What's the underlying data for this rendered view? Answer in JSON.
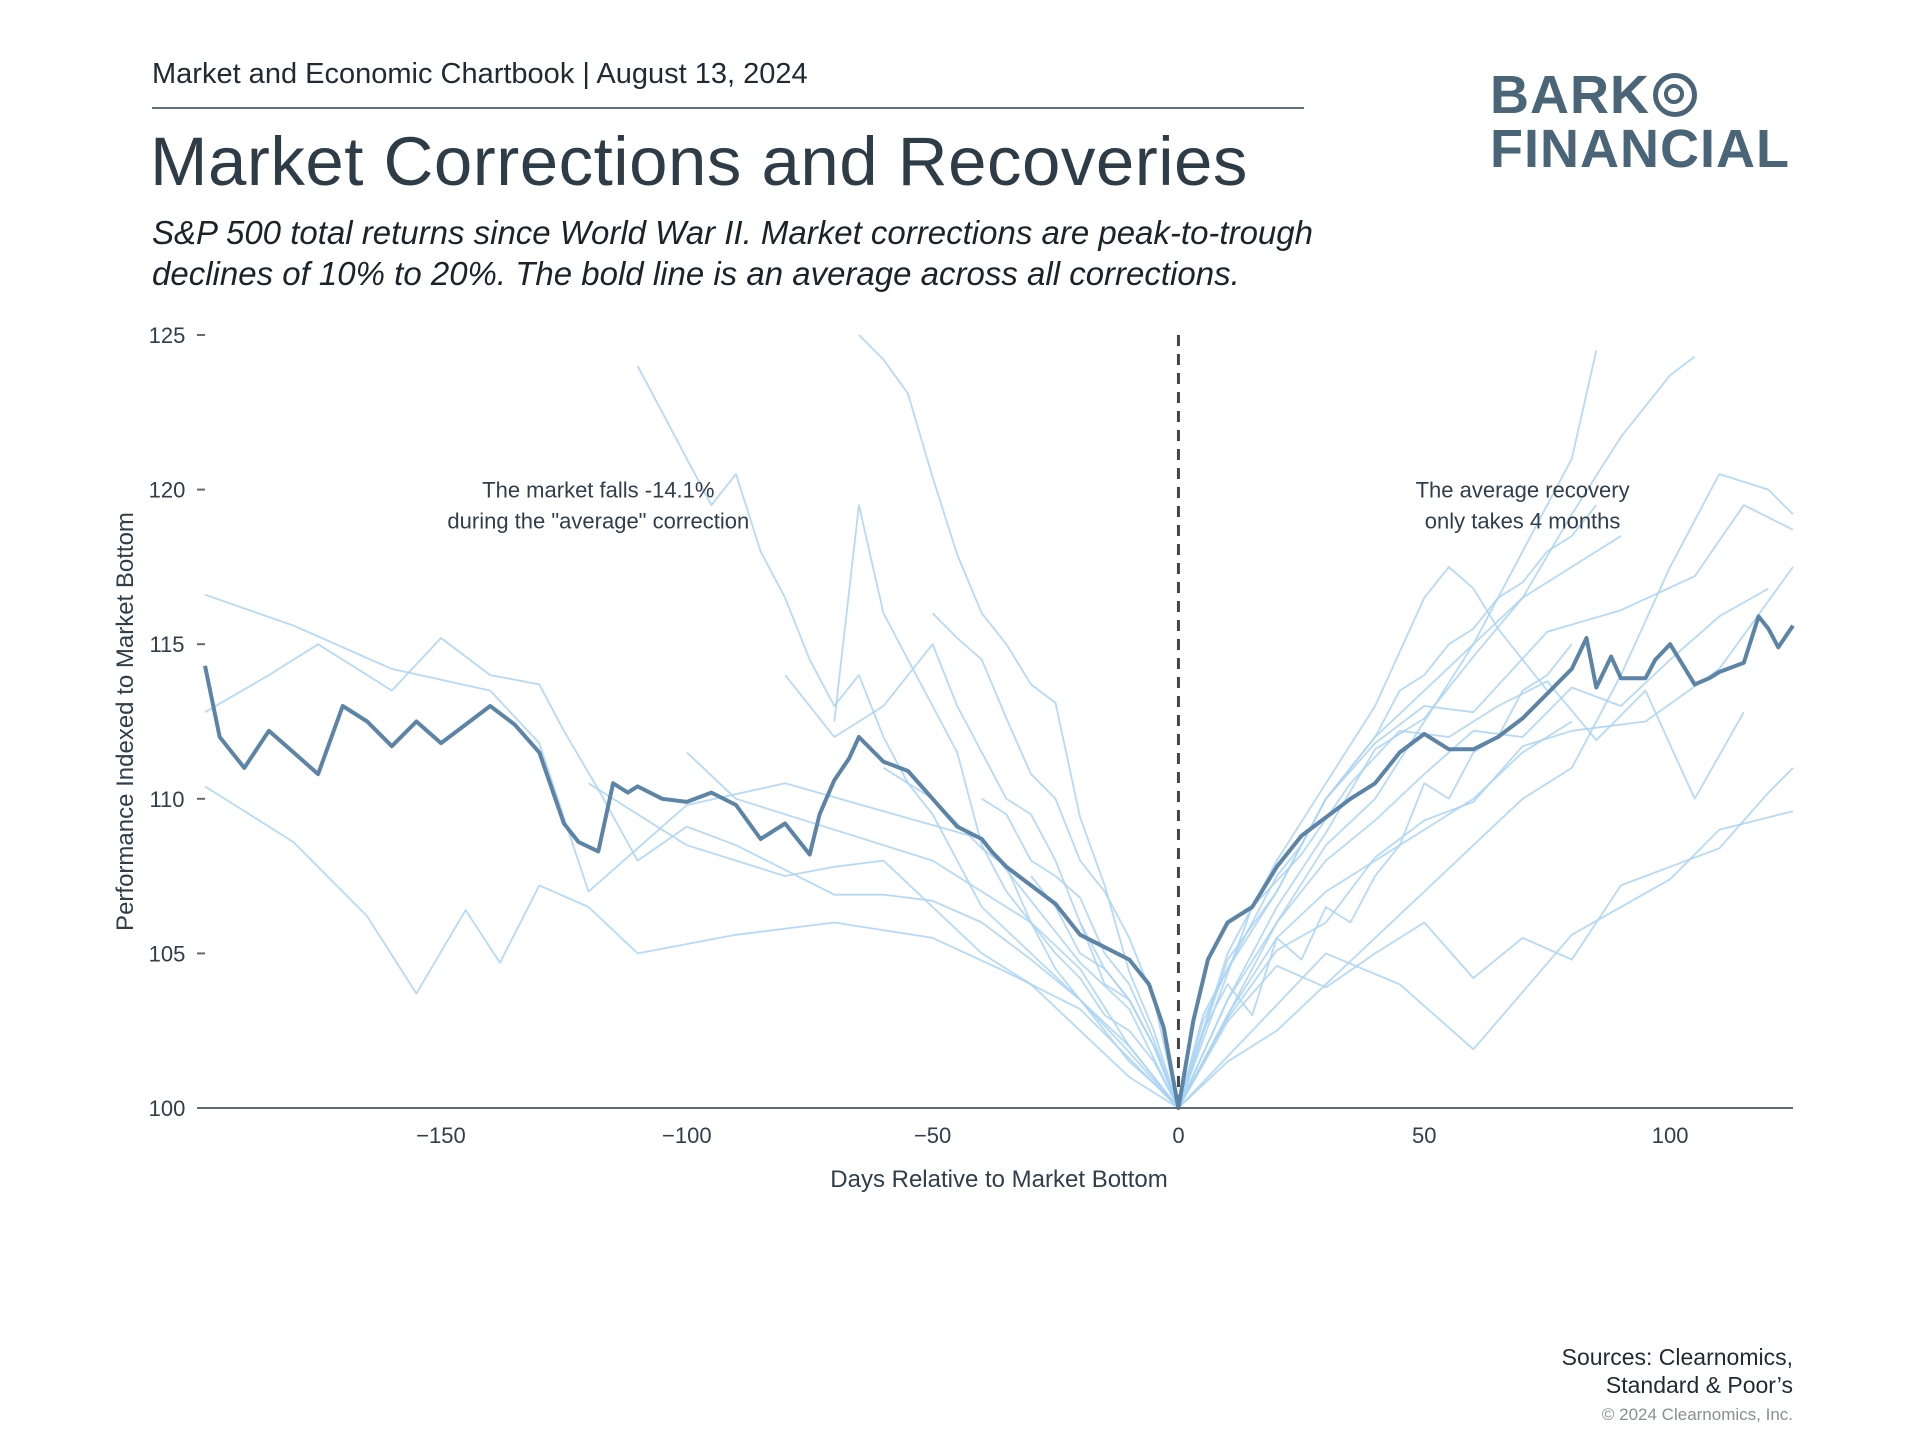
{
  "header": {
    "kicker": "Market and Economic Chartbook | August 13, 2024",
    "title": "Market Corrections and Recoveries",
    "subtitle": "S&P 500 total returns since World War II. Market corrections are peak-to-trough declines of 10% to 20%. The bold line is an average across all corrections."
  },
  "logo": {
    "line1": "BARK",
    "line2": "FINANCIAL"
  },
  "footer": {
    "sources_line1": "Sources: Clearnomics,",
    "sources_line2": "Standard & Poor’s",
    "copyright": "© 2024 Clearnomics, Inc."
  },
  "colors": {
    "average": "#5b84a6",
    "individual": "#a9d4f5",
    "axis": "#5f6b75",
    "marker": "#444444",
    "text": "#2f3e4a"
  },
  "chart_data": {
    "type": "line",
    "xlabel": "Days Relative to Market Bottom",
    "ylabel": "Performance Indexed to Market Bottom",
    "xlim": [
      -198,
      125
    ],
    "ylim": [
      100,
      125
    ],
    "xticks": [
      -150,
      -100,
      -50,
      0,
      50,
      100
    ],
    "xtick_labels": [
      "−150",
      "−100",
      "−50",
      "0",
      "50",
      "100"
    ],
    "yticks": [
      100,
      105,
      110,
      115,
      120,
      125
    ],
    "grid": false,
    "annotations": [
      {
        "lines": [
          "The market falls -14.1%",
          "during the \"average\" correction"
        ],
        "x": -118,
        "y": 120
      },
      {
        "lines": [
          "The average recovery",
          "only takes 4 months"
        ],
        "x": 70,
        "y": 120
      }
    ],
    "reference_line": {
      "x": 0,
      "style": "dashed"
    },
    "average_series": {
      "x": [
        -198,
        -195,
        -190,
        -185,
        -180,
        -175,
        -170,
        -165,
        -160,
        -155,
        -150,
        -145,
        -140,
        -135,
        -130,
        -125,
        -122,
        -118,
        -115,
        -112,
        -110,
        -105,
        -100,
        -95,
        -90,
        -85,
        -80,
        -75,
        -73,
        -70,
        -67,
        -65,
        -60,
        -55,
        -50,
        -45,
        -40,
        -38,
        -35,
        -30,
        -25,
        -20,
        -15,
        -10,
        -6,
        -3,
        0,
        3,
        6,
        10,
        15,
        20,
        25,
        30,
        35,
        40,
        45,
        50,
        55,
        60,
        65,
        70,
        75,
        80,
        83,
        85,
        88,
        90,
        95,
        97,
        100,
        105,
        108,
        110,
        115,
        118,
        120,
        122,
        125
      ],
      "y": [
        114.3,
        112.0,
        111.0,
        112.2,
        111.5,
        110.8,
        113.0,
        112.5,
        111.7,
        112.5,
        111.8,
        112.4,
        113.0,
        112.4,
        111.5,
        109.2,
        108.6,
        108.3,
        110.5,
        110.2,
        110.4,
        110.0,
        109.9,
        110.2,
        109.8,
        108.7,
        109.2,
        108.2,
        109.5,
        110.6,
        111.3,
        112.0,
        111.2,
        110.9,
        110.0,
        109.1,
        108.7,
        108.3,
        107.8,
        107.2,
        106.6,
        105.6,
        105.2,
        104.8,
        104.0,
        102.6,
        100.0,
        102.8,
        104.8,
        106.0,
        106.5,
        107.8,
        108.8,
        109.4,
        110.0,
        110.5,
        111.5,
        112.1,
        111.6,
        111.6,
        112.0,
        112.6,
        113.4,
        114.2,
        115.2,
        113.6,
        114.6,
        113.9,
        113.9,
        114.5,
        115.0,
        113.7,
        113.9,
        114.1,
        114.4,
        115.9,
        115.5,
        114.9,
        115.6
      ]
    },
    "individual_series": [
      {
        "x": [
          -198,
          -180,
          -160,
          -140,
          -130,
          -120,
          -100,
          -80,
          -60,
          -40,
          -20,
          -10,
          0,
          10,
          20,
          30,
          40,
          50,
          60,
          75,
          90,
          105,
          115,
          125
        ],
        "y": [
          116.6,
          115.6,
          114.2,
          113.5,
          111.8,
          107.0,
          109.8,
          110.5,
          109.6,
          108.7,
          104.7,
          103.2,
          100.0,
          104.8,
          107.0,
          110.0,
          111.8,
          113.0,
          112.8,
          115.4,
          116.1,
          117.2,
          119.5,
          118.7
        ]
      },
      {
        "x": [
          -198,
          -180,
          -165,
          -155,
          -145,
          -138,
          -130,
          -120,
          -110,
          -90,
          -70,
          -50,
          -35,
          -20,
          -10,
          0,
          15,
          30,
          45,
          60,
          80,
          100,
          110,
          125
        ],
        "y": [
          110.4,
          108.6,
          106.2,
          103.7,
          106.4,
          104.7,
          107.2,
          106.5,
          105.0,
          105.6,
          106.0,
          105.5,
          104.4,
          103.2,
          101.6,
          100.0,
          102.5,
          105.0,
          104.0,
          101.9,
          105.6,
          107.4,
          109.0,
          109.6
        ]
      },
      {
        "x": [
          -198,
          -185,
          -175,
          -160,
          -150,
          -140,
          -130,
          -125,
          -118,
          -110,
          -100,
          -90,
          -80,
          -70,
          -60,
          -50,
          -40,
          -30,
          -20,
          -10,
          0,
          10,
          20,
          30,
          40,
          50,
          60,
          70,
          80,
          95,
          110,
          125
        ],
        "y": [
          112.8,
          114.0,
          115.0,
          113.5,
          115.2,
          114.0,
          113.7,
          112.2,
          110.3,
          108.0,
          109.1,
          108.5,
          107.7,
          106.9,
          106.9,
          106.7,
          106.0,
          104.8,
          103.5,
          101.8,
          100.0,
          102.9,
          105.1,
          106.0,
          108.1,
          109.3,
          109.9,
          111.7,
          112.2,
          112.5,
          114.2,
          117.5
        ]
      },
      {
        "x": [
          -110,
          -105,
          -100,
          -95,
          -90,
          -85,
          -80,
          -75,
          -70,
          -65,
          -60,
          -55,
          -50,
          -45,
          -40,
          -30,
          -20,
          -10,
          0,
          10,
          20,
          30,
          40,
          50,
          60,
          70,
          80,
          85
        ],
        "y": [
          124.0,
          122.5,
          121.0,
          119.5,
          120.5,
          118.0,
          116.5,
          114.5,
          113.0,
          114.0,
          112.0,
          110.5,
          109.5,
          108.0,
          106.5,
          105.0,
          103.5,
          102.0,
          100.0,
          103.5,
          106.0,
          108.5,
          110.0,
          112.5,
          115.0,
          118.0,
          121.0,
          124.5
        ]
      },
      {
        "x": [
          -65,
          -60,
          -55,
          -50,
          -45,
          -40,
          -35,
          -30,
          -25,
          -20,
          -15,
          -10,
          -5,
          0,
          10,
          20,
          30,
          40,
          50,
          60,
          70,
          80,
          90,
          100,
          105
        ],
        "y": [
          125.0,
          124.2,
          123.1,
          120.4,
          117.9,
          116.0,
          115.0,
          113.7,
          113.1,
          109.4,
          107.2,
          104.4,
          102.5,
          100.0,
          103.5,
          106.5,
          108.9,
          111.6,
          112.6,
          114.6,
          116.5,
          119.2,
          121.7,
          123.7,
          124.3
        ]
      },
      {
        "x": [
          -70,
          -65,
          -60,
          -55,
          -50,
          -45,
          -40,
          -35,
          -30,
          -25,
          -20,
          -15,
          -10,
          -5,
          0,
          10,
          20,
          30,
          40,
          50,
          60,
          70,
          80,
          90,
          100,
          110,
          120,
          125
        ],
        "y": [
          112.5,
          119.5,
          116.0,
          114.5,
          113.0,
          111.5,
          108.5,
          107.0,
          106.0,
          104.5,
          103.5,
          102.5,
          101.5,
          100.8,
          100.0,
          101.5,
          102.5,
          104.0,
          105.5,
          107.0,
          108.5,
          110.0,
          111.0,
          114.0,
          117.5,
          120.5,
          120.0,
          119.2
        ]
      },
      {
        "x": [
          -80,
          -70,
          -60,
          -50,
          -45,
          -40,
          -35,
          -30,
          -25,
          -20,
          -15,
          -10,
          -5,
          0,
          5,
          10,
          20,
          30,
          40,
          50,
          60,
          70,
          80,
          90
        ],
        "y": [
          114.0,
          112.0,
          113.0,
          115.0,
          113.0,
          111.5,
          110.0,
          109.5,
          108.0,
          106.0,
          104.0,
          103.5,
          102.0,
          100.0,
          102.8,
          104.5,
          107.0,
          110.0,
          112.0,
          113.5,
          115.0,
          116.5,
          117.5,
          118.5
        ]
      },
      {
        "x": [
          -50,
          -45,
          -40,
          -35,
          -30,
          -25,
          -20,
          -15,
          -10,
          -5,
          0,
          10,
          20,
          30,
          40,
          50,
          60,
          70,
          80,
          90,
          100,
          110,
          120,
          125
        ],
        "y": [
          116.0,
          115.2,
          114.5,
          112.6,
          110.8,
          110.0,
          108.0,
          107.0,
          105.5,
          103.5,
          100.0,
          102.8,
          104.6,
          103.9,
          105.0,
          106.0,
          104.2,
          105.5,
          104.8,
          107.2,
          107.8,
          108.4,
          110.2,
          111.0
        ]
      },
      {
        "x": [
          -40,
          -35,
          -30,
          -25,
          -20,
          -15,
          -10,
          -5,
          0,
          10,
          20,
          30,
          40,
          50,
          60,
          70,
          80,
          90,
          100,
          110,
          120
        ],
        "y": [
          110.0,
          109.5,
          108.0,
          107.5,
          106.8,
          105.0,
          104.0,
          102.2,
          100.0,
          103.0,
          106.0,
          108.0,
          109.3,
          110.8,
          112.2,
          112.0,
          113.6,
          113.0,
          114.5,
          115.9,
          116.8
        ]
      },
      {
        "x": [
          -60,
          -50,
          -40,
          -35,
          -30,
          -25,
          -20,
          -15,
          -10,
          -5,
          0,
          8,
          15,
          25,
          35,
          45,
          55,
          65,
          75,
          85,
          95,
          105,
          115
        ],
        "y": [
          111.0,
          110.0,
          108.4,
          107.8,
          106.0,
          105.0,
          104.2,
          103.0,
          102.5,
          101.5,
          100.0,
          103.5,
          106.5,
          108.2,
          110.5,
          112.2,
          112.0,
          113.0,
          113.8,
          111.9,
          113.5,
          110.0,
          112.8
        ]
      },
      {
        "x": [
          -100,
          -90,
          -80,
          -70,
          -60,
          -50,
          -40,
          -30,
          -20,
          -10,
          0,
          10,
          20,
          30,
          40,
          50,
          55,
          60,
          65,
          70,
          75
        ],
        "y": [
          111.5,
          110.0,
          109.5,
          109.0,
          108.5,
          108.0,
          107.0,
          106.0,
          104.5,
          102.0,
          100.0,
          105.0,
          108.0,
          110.5,
          113.0,
          116.5,
          117.5,
          116.8,
          115.5,
          114.5,
          113.5
        ]
      },
      {
        "x": [
          -30,
          -25,
          -20,
          -15,
          -10,
          -5,
          0,
          5,
          10,
          15,
          20,
          25,
          30,
          35,
          40,
          45,
          50,
          55,
          60,
          65,
          70,
          75,
          80,
          85
        ],
        "y": [
          107.5,
          106.5,
          105.0,
          104.5,
          103.5,
          102.0,
          100.0,
          103.0,
          104.5,
          106.0,
          107.5,
          108.5,
          110.0,
          111.0,
          112.0,
          113.5,
          114.0,
          115.0,
          115.5,
          116.5,
          117.0,
          118.0,
          118.5,
          119.5
        ]
      },
      {
        "x": [
          -20,
          -15,
          -10,
          -5,
          0,
          5,
          10,
          15,
          20,
          25,
          30,
          35,
          40,
          45,
          50,
          55,
          60,
          65,
          70,
          75,
          80
        ],
        "y": [
          106.0,
          104.5,
          103.5,
          102.0,
          100.0,
          102.5,
          104.0,
          103.0,
          105.5,
          104.8,
          106.5,
          106.0,
          107.5,
          108.5,
          110.5,
          110.0,
          111.5,
          112.0,
          113.5,
          114.0,
          115.0
        ]
      },
      {
        "x": [
          -120,
          -110,
          -100,
          -90,
          -80,
          -70,
          -60,
          -50,
          -40,
          -30,
          -20,
          -10,
          0,
          10,
          20,
          30,
          40,
          50,
          60,
          70,
          80
        ],
        "y": [
          110.5,
          109.5,
          108.5,
          108.0,
          107.5,
          107.8,
          108.0,
          106.5,
          105.0,
          104.0,
          102.5,
          101.0,
          100.0,
          103.0,
          105.5,
          107.0,
          108.0,
          109.0,
          110.0,
          111.5,
          112.5
        ]
      }
    ]
  }
}
